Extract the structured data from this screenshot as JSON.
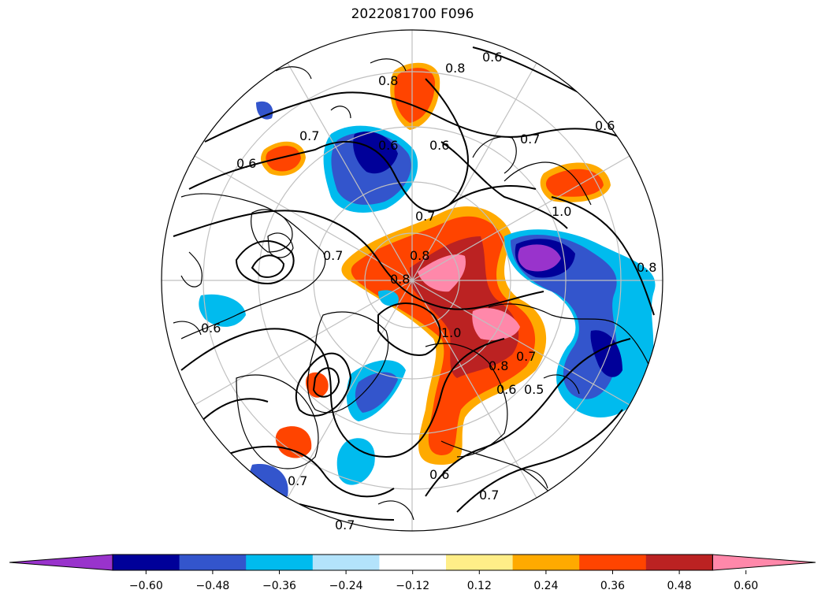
{
  "title": "2022081700 F096",
  "colorbar": {
    "colors": [
      "#9933cc",
      "#000099",
      "#3355cc",
      "#00bbee",
      "#b3e3fb",
      "#ffffff",
      "#ffee88",
      "#ffaa00",
      "#ff4400",
      "#bb2222",
      "#ff88aa"
    ],
    "tick_labels": [
      "−0.60",
      "−0.48",
      "−0.36",
      "−0.24",
      "−0.12",
      "0.12",
      "0.24",
      "0.36",
      "0.48",
      "0.60"
    ],
    "extend": "both"
  },
  "contour_labels": [
    "0.8",
    "0.6",
    "0.7",
    "0.8",
    "0.6",
    "0.7",
    "0.6",
    "0.6",
    "0.6",
    "0.7",
    "0.8",
    "0.8",
    "1.0",
    "0.8",
    "1.0",
    "0.7",
    "0.8",
    "0.7",
    "0.6",
    "0.5",
    "0.6",
    "0.7",
    "0.7",
    "0.7",
    "0.6"
  ]
}
